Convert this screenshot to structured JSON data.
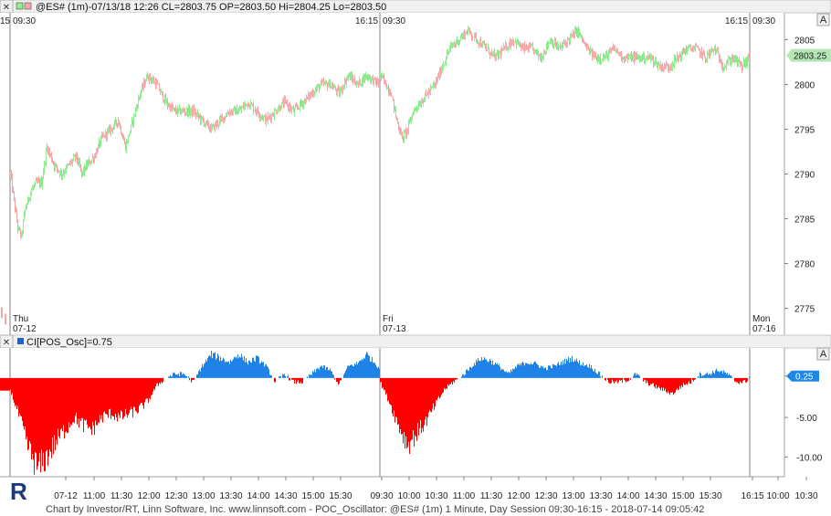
{
  "top_header": {
    "close_glyph": "✕",
    "title": "@ES# (1m)-07/13/18 12:26 CL=2803.75 OP=2803.50 Hi=2804.25 Lo=2803.50"
  },
  "bottom_header": {
    "close_glyph": "✕",
    "title": "CI[POS_Osc]=0.75"
  },
  "scale_button_label": "A",
  "footer_text": "Chart by Investor/RT, Linn Software, Inc. www.linnsoft.com - POC_Oscillator: @ES# (1m) 1 Minute, Day Session 09:30-16:15 - 2018-07-14 09:05:42",
  "colors": {
    "up_candle": "#90ee90",
    "down_candle": "#f4a7a7",
    "osc_positive": "#1e82e6",
    "osc_negative": "#ff0000",
    "price_badge": "#b4e6b4",
    "osc_badge": "#1e88e5",
    "session_line": "#808080"
  },
  "chart_data": [
    {
      "type": "candlestick",
      "title": "@ES# (1m)-07/13/18 12:26 CL=2803.75 OP=2803.50 Hi=2804.25 Lo=2803.50",
      "ylim": [
        2772,
        2808
      ],
      "y_ticks": [
        2775,
        2780,
        2785,
        2790,
        2795,
        2800,
        2805
      ],
      "last_value": "2803.25",
      "sessions": [
        {
          "day": "Thu",
          "date": "07-12",
          "open_label": "09:30",
          "close_label": "16:15"
        },
        {
          "day": "Fri",
          "date": "07-13",
          "open_label": "09:30",
          "close_label": "16:15"
        },
        {
          "day": "Mon",
          "date": "07-16",
          "open_label": "09:30",
          "close_label": ""
        }
      ],
      "left_edge_label": "15",
      "close_path": {
        "thu": [
          [
            0,
            2790
          ],
          [
            4,
            2787
          ],
          [
            8,
            2784
          ],
          [
            12,
            2783
          ],
          [
            16,
            2786
          ],
          [
            22,
            2788
          ],
          [
            28,
            2789
          ],
          [
            34,
            2789
          ],
          [
            40,
            2793
          ],
          [
            48,
            2791
          ],
          [
            56,
            2790
          ],
          [
            64,
            2791
          ],
          [
            72,
            2792
          ],
          [
            78,
            2790
          ],
          [
            84,
            2791
          ],
          [
            92,
            2792
          ],
          [
            100,
            2794
          ],
          [
            110,
            2795
          ],
          [
            118,
            2796
          ],
          [
            126,
            2793
          ],
          [
            134,
            2796
          ],
          [
            142,
            2799
          ],
          [
            150,
            2801
          ],
          [
            160,
            2800
          ],
          [
            170,
            2798
          ],
          [
            180,
            2797
          ],
          [
            190,
            2797
          ],
          [
            200,
            2797
          ],
          [
            210,
            2796
          ],
          [
            220,
            2795
          ],
          [
            230,
            2796
          ],
          [
            240,
            2797
          ],
          [
            250,
            2797
          ],
          [
            260,
            2798
          ],
          [
            270,
            2797
          ],
          [
            280,
            2796
          ],
          [
            290,
            2797
          ],
          [
            300,
            2798
          ],
          [
            310,
            2797
          ],
          [
            320,
            2798
          ],
          [
            330,
            2799
          ],
          [
            340,
            2800
          ],
          [
            350,
            2800
          ],
          [
            360,
            2799
          ],
          [
            370,
            2801
          ],
          [
            380,
            2800
          ],
          [
            390,
            2801
          ],
          [
            404,
            2800
          ]
        ],
        "fri": [
          [
            0,
            2801
          ],
          [
            6,
            2800
          ],
          [
            12,
            2799
          ],
          [
            18,
            2796
          ],
          [
            24,
            2794
          ],
          [
            30,
            2795
          ],
          [
            36,
            2797
          ],
          [
            44,
            2798
          ],
          [
            52,
            2799
          ],
          [
            60,
            2800
          ],
          [
            68,
            2802
          ],
          [
            76,
            2804
          ],
          [
            86,
            2805
          ],
          [
            96,
            2806
          ],
          [
            106,
            2805
          ],
          [
            116,
            2804
          ],
          [
            126,
            2803
          ],
          [
            136,
            2804
          ],
          [
            146,
            2805
          ],
          [
            156,
            2804
          ],
          [
            166,
            2804
          ],
          [
            176,
            2803
          ],
          [
            186,
            2805
          ],
          [
            196,
            2804
          ],
          [
            206,
            2805
          ],
          [
            216,
            2806
          ],
          [
            226,
            2804
          ],
          [
            236,
            2803
          ],
          [
            246,
            2803
          ],
          [
            256,
            2804
          ],
          [
            266,
            2803
          ],
          [
            276,
            2803
          ],
          [
            286,
            2803
          ],
          [
            296,
            2803
          ],
          [
            306,
            2802
          ],
          [
            316,
            2802
          ],
          [
            326,
            2803
          ],
          [
            336,
            2804
          ],
          [
            346,
            2804
          ],
          [
            356,
            2803
          ],
          [
            366,
            2804
          ],
          [
            376,
            2802
          ],
          [
            386,
            2803
          ],
          [
            396,
            2802
          ],
          [
            404,
            2803
          ]
        ]
      },
      "pre_session_tail": [
        [
          2774.5
        ],
        [
          2773.8
        ]
      ]
    },
    {
      "type": "area",
      "name": "CI[POS_Osc]",
      "last_value": "0.25",
      "ylim": [
        -12.5,
        3.8
      ],
      "y_ticks": [
        -10.0,
        -5.0,
        0.25
      ],
      "y_tick_labels": [
        "-10.00",
        "-5.00",
        "0.25"
      ],
      "x_tick_labels": [
        "07-12",
        "11:00",
        "11:30",
        "12:00",
        "12:30",
        "13:00",
        "13:30",
        "14:00",
        "14:30",
        "15:00",
        "15:30",
        "09:30",
        "10:00",
        "10:30",
        "11:00",
        "11:30",
        "12:00",
        "12:30",
        "13:00",
        "13:30",
        "14:00",
        "14:30",
        "15:00",
        "15:30",
        "16:15",
        "10:00",
        "10:30"
      ],
      "x_tick_label_positions_index": [
        0,
        1,
        2,
        3,
        4,
        5,
        6,
        7,
        8,
        9,
        10,
        11,
        12,
        13,
        14,
        15,
        16,
        17,
        18,
        19,
        20,
        21,
        22,
        23,
        24,
        25,
        26
      ],
      "profile": {
        "thu": [
          [
            0,
            -1.5
          ],
          [
            10,
            -5
          ],
          [
            20,
            -9
          ],
          [
            30,
            -11.5
          ],
          [
            40,
            -10
          ],
          [
            50,
            -8
          ],
          [
            60,
            -6.5
          ],
          [
            70,
            -5
          ],
          [
            80,
            -6
          ],
          [
            90,
            -6.5
          ],
          [
            100,
            -5
          ],
          [
            110,
            -4.5
          ],
          [
            120,
            -5
          ],
          [
            130,
            -4.5
          ],
          [
            140,
            -4
          ],
          [
            150,
            -3
          ],
          [
            160,
            -1
          ],
          [
            170,
            0
          ],
          [
            180,
            0.5
          ],
          [
            190,
            0.5
          ],
          [
            200,
            -0.5
          ],
          [
            210,
            1.5
          ],
          [
            220,
            3
          ],
          [
            230,
            2.5
          ],
          [
            240,
            2
          ],
          [
            250,
            3
          ],
          [
            260,
            2
          ],
          [
            270,
            2.5
          ],
          [
            280,
            1.5
          ],
          [
            290,
            -0.5
          ],
          [
            300,
            0.5
          ],
          [
            310,
            -0.5
          ],
          [
            320,
            -0.5
          ],
          [
            330,
            0.5
          ],
          [
            340,
            1.5
          ],
          [
            350,
            1
          ],
          [
            360,
            -0.8
          ],
          [
            370,
            1.5
          ],
          [
            380,
            1.8
          ],
          [
            390,
            3
          ],
          [
            405,
            1.2
          ]
        ],
        "fri": [
          [
            0,
            -0.5
          ],
          [
            10,
            -3
          ],
          [
            20,
            -6
          ],
          [
            30,
            -8.5
          ],
          [
            40,
            -7
          ],
          [
            50,
            -5.5
          ],
          [
            60,
            -3.5
          ],
          [
            70,
            -1.5
          ],
          [
            80,
            -0.5
          ],
          [
            90,
            0.3
          ],
          [
            100,
            1.5
          ],
          [
            110,
            2.5
          ],
          [
            120,
            2.2
          ],
          [
            130,
            1.5
          ],
          [
            140,
            0.5
          ],
          [
            150,
            1.5
          ],
          [
            160,
            2
          ],
          [
            170,
            1.8
          ],
          [
            180,
            1.2
          ],
          [
            190,
            1.5
          ],
          [
            200,
            2
          ],
          [
            210,
            2.5
          ],
          [
            220,
            1.8
          ],
          [
            230,
            1.5
          ],
          [
            240,
            0.5
          ],
          [
            250,
            -0.5
          ],
          [
            260,
            -0.5
          ],
          [
            270,
            -0.3
          ],
          [
            280,
            0.5
          ],
          [
            290,
            -0.5
          ],
          [
            300,
            -1
          ],
          [
            310,
            -1.5
          ],
          [
            320,
            -2
          ],
          [
            330,
            -1
          ],
          [
            340,
            -0.5
          ],
          [
            350,
            0.5
          ],
          [
            360,
            0.5
          ],
          [
            370,
            1
          ],
          [
            380,
            0.5
          ],
          [
            390,
            -0.5
          ],
          [
            400,
            -0.5
          ],
          [
            405,
            0.3
          ]
        ]
      }
    }
  ]
}
